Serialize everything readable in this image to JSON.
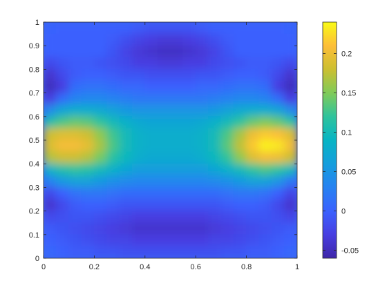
{
  "chart_data": {
    "type": "heatmap",
    "title": "",
    "xlabel": "",
    "ylabel": "",
    "xlim": [
      0,
      1
    ],
    "ylim": [
      0,
      1
    ],
    "x_ticks": [
      "0",
      "0.2",
      "0.4",
      "0.6",
      "0.8",
      "1"
    ],
    "y_ticks": [
      "0",
      "0.1",
      "0.2",
      "0.3",
      "0.4",
      "0.5",
      "0.6",
      "0.7",
      "0.8",
      "0.9",
      "1"
    ],
    "colormap": "parula",
    "clim": [
      -0.06,
      0.24
    ],
    "colorbar_ticks": [
      "-0.05",
      "0",
      "0.05",
      "0.1",
      "0.15",
      "0.2"
    ],
    "grid": false,
    "colorbar_placement": "right",
    "x_centers": [
      0.025,
      0.075,
      0.125,
      0.175,
      0.225,
      0.275,
      0.325,
      0.375,
      0.425,
      0.475,
      0.525,
      0.575,
      0.625,
      0.675,
      0.725,
      0.775,
      0.825,
      0.875,
      0.925,
      0.975
    ],
    "y_centers": [
      0.975,
      0.925,
      0.875,
      0.825,
      0.775,
      0.725,
      0.675,
      0.625,
      0.575,
      0.525,
      0.475,
      0.425,
      0.375,
      0.325,
      0.275,
      0.225,
      0.175,
      0.125,
      0.075,
      0.025
    ],
    "values": [
      [
        0.003,
        0.0,
        0.0,
        0.0,
        0.0,
        0.0,
        0.0,
        -0.005,
        -0.01,
        -0.01,
        -0.01,
        -0.01,
        -0.005,
        0.0,
        0.0,
        0.0,
        0.0,
        0.0,
        0.0,
        0.003
      ],
      [
        0.0,
        0.0,
        0.0,
        0.0,
        0.0,
        -0.005,
        -0.015,
        -0.025,
        -0.03,
        -0.035,
        -0.035,
        -0.03,
        -0.025,
        -0.015,
        -0.005,
        0.0,
        0.0,
        0.0,
        0.0,
        0.0
      ],
      [
        0.0,
        0.0,
        0.0,
        0.0,
        0.0,
        -0.01,
        -0.025,
        -0.035,
        -0.04,
        -0.045,
        -0.045,
        -0.04,
        -0.035,
        -0.025,
        -0.01,
        0.0,
        0.0,
        0.0,
        0.0,
        0.0
      ],
      [
        -0.02,
        -0.01,
        -0.005,
        -0.005,
        -0.01,
        -0.015,
        -0.02,
        -0.03,
        -0.03,
        -0.035,
        -0.035,
        -0.03,
        -0.03,
        -0.02,
        -0.015,
        -0.01,
        -0.005,
        -0.005,
        -0.01,
        -0.02
      ],
      [
        -0.04,
        -0.02,
        -0.005,
        0.0,
        0.0,
        -0.005,
        -0.01,
        -0.01,
        -0.015,
        -0.015,
        -0.015,
        -0.015,
        -0.01,
        -0.01,
        -0.005,
        0.0,
        0.0,
        -0.005,
        -0.02,
        -0.04
      ],
      [
        -0.05,
        -0.03,
        0.01,
        0.015,
        0.015,
        0.01,
        0.005,
        0.005,
        0.0,
        0.0,
        0.0,
        0.0,
        0.005,
        0.005,
        0.01,
        0.015,
        0.015,
        0.01,
        -0.03,
        -0.05
      ],
      [
        -0.03,
        0.01,
        0.03,
        0.035,
        0.035,
        0.03,
        0.025,
        0.02,
        0.02,
        0.02,
        0.02,
        0.02,
        0.02,
        0.025,
        0.03,
        0.035,
        0.035,
        0.03,
        0.01,
        -0.03
      ],
      [
        0.04,
        0.07,
        0.08,
        0.08,
        0.075,
        0.065,
        0.055,
        0.05,
        0.05,
        0.05,
        0.05,
        0.05,
        0.05,
        0.055,
        0.065,
        0.075,
        0.08,
        0.08,
        0.07,
        0.04
      ],
      [
        0.11,
        0.13,
        0.14,
        0.135,
        0.12,
        0.1,
        0.085,
        0.075,
        0.07,
        0.07,
        0.07,
        0.07,
        0.075,
        0.085,
        0.1,
        0.12,
        0.14,
        0.15,
        0.14,
        0.12
      ],
      [
        0.18,
        0.19,
        0.19,
        0.18,
        0.155,
        0.125,
        0.1,
        0.085,
        0.08,
        0.08,
        0.08,
        0.08,
        0.085,
        0.1,
        0.13,
        0.165,
        0.2,
        0.215,
        0.21,
        0.19
      ],
      [
        0.19,
        0.205,
        0.205,
        0.195,
        0.165,
        0.13,
        0.1,
        0.085,
        0.08,
        0.08,
        0.08,
        0.08,
        0.085,
        0.1,
        0.135,
        0.175,
        0.215,
        0.235,
        0.23,
        0.205
      ],
      [
        0.17,
        0.18,
        0.18,
        0.17,
        0.145,
        0.115,
        0.095,
        0.08,
        0.075,
        0.075,
        0.075,
        0.075,
        0.08,
        0.095,
        0.12,
        0.155,
        0.19,
        0.205,
        0.2,
        0.18
      ],
      [
        0.09,
        0.11,
        0.12,
        0.115,
        0.1,
        0.085,
        0.07,
        0.06,
        0.06,
        0.06,
        0.06,
        0.06,
        0.06,
        0.07,
        0.085,
        0.1,
        0.12,
        0.13,
        0.12,
        0.1
      ],
      [
        0.03,
        0.055,
        0.065,
        0.065,
        0.055,
        0.045,
        0.04,
        0.035,
        0.035,
        0.035,
        0.035,
        0.035,
        0.035,
        0.04,
        0.045,
        0.055,
        0.065,
        0.065,
        0.05,
        0.02
      ],
      [
        -0.02,
        0.0,
        0.015,
        0.02,
        0.02,
        0.015,
        0.01,
        0.01,
        0.01,
        0.01,
        0.01,
        0.01,
        0.01,
        0.01,
        0.015,
        0.02,
        0.02,
        0.015,
        0.0,
        -0.025
      ],
      [
        -0.04,
        -0.02,
        -0.005,
        0.0,
        0.0,
        -0.005,
        -0.01,
        -0.01,
        -0.01,
        -0.01,
        -0.01,
        -0.01,
        -0.01,
        -0.01,
        -0.005,
        0.0,
        0.0,
        -0.005,
        -0.02,
        -0.04
      ],
      [
        -0.02,
        -0.015,
        -0.01,
        -0.01,
        -0.015,
        -0.02,
        -0.025,
        -0.03,
        -0.03,
        -0.03,
        -0.03,
        -0.03,
        -0.03,
        -0.025,
        -0.02,
        -0.015,
        -0.01,
        -0.01,
        -0.015,
        -0.025
      ],
      [
        -0.005,
        -0.01,
        -0.015,
        -0.02,
        -0.025,
        -0.03,
        -0.035,
        -0.04,
        -0.04,
        -0.04,
        -0.04,
        -0.04,
        -0.04,
        -0.035,
        -0.03,
        -0.025,
        -0.02,
        -0.015,
        -0.01,
        -0.005
      ],
      [
        0.0,
        -0.005,
        -0.01,
        -0.015,
        -0.02,
        -0.025,
        -0.025,
        -0.03,
        -0.03,
        -0.03,
        -0.03,
        -0.03,
        -0.03,
        -0.025,
        -0.025,
        -0.02,
        -0.015,
        -0.01,
        -0.005,
        0.0
      ],
      [
        0.005,
        0.0,
        -0.005,
        -0.005,
        -0.01,
        -0.01,
        -0.015,
        -0.015,
        -0.015,
        -0.015,
        -0.015,
        -0.015,
        -0.015,
        -0.015,
        -0.01,
        -0.01,
        -0.005,
        -0.005,
        0.0,
        0.005
      ]
    ]
  }
}
